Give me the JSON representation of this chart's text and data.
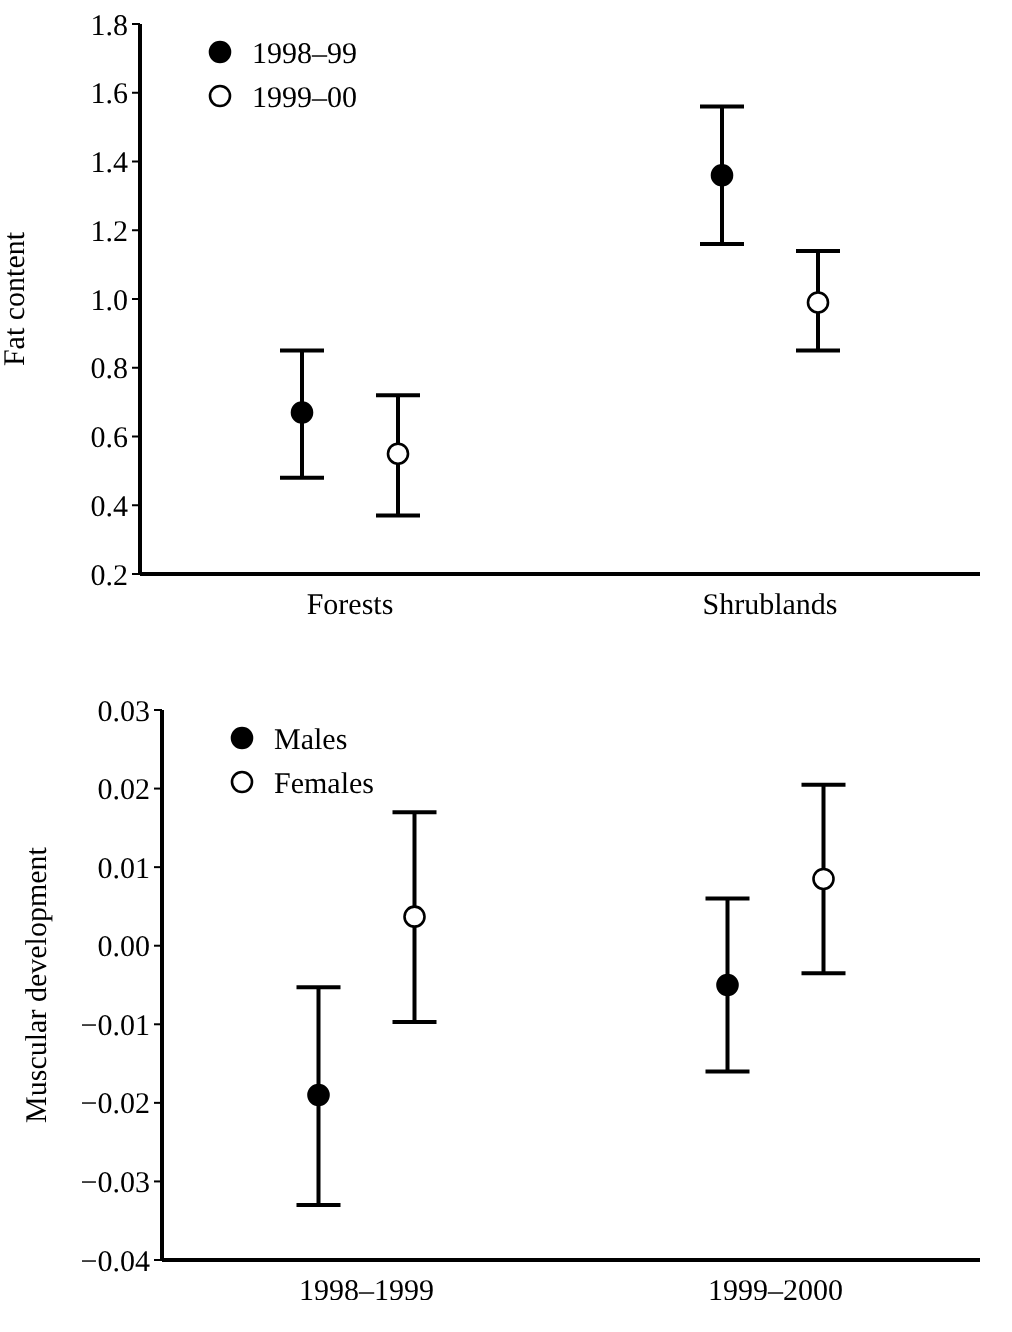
{
  "chart_data": [
    {
      "type": "scatter",
      "ylabel": "Fat content",
      "categories": [
        "Forests",
        "Shrublands"
      ],
      "ylim": [
        0.2,
        1.8
      ],
      "yticks": [
        {
          "value": 0.2,
          "label": "0.2"
        },
        {
          "value": 0.4,
          "label": "0.4"
        },
        {
          "value": 0.6,
          "label": "0.6"
        },
        {
          "value": 0.8,
          "label": "0.8"
        },
        {
          "value": 1.0,
          "label": "1.0"
        },
        {
          "value": 1.2,
          "label": "1.2"
        },
        {
          "value": 1.4,
          "label": "1.4"
        },
        {
          "value": 1.6,
          "label": "1.6"
        },
        {
          "value": 1.8,
          "label": "1.8"
        }
      ],
      "marker": "circle",
      "legend": "top left",
      "grid": false,
      "series": [
        {
          "name": "1998–99",
          "color": "#000000",
          "values": [
            0.67,
            1.36
          ],
          "errors": [
            [
              0.48,
              0.85
            ],
            [
              1.16,
              1.56
            ]
          ]
        },
        {
          "name": "1999–00",
          "color": "#ffffff",
          "values": [
            0.55,
            0.99
          ],
          "errors": [
            [
              0.37,
              0.72
            ],
            [
              0.85,
              1.14
            ]
          ]
        }
      ]
    },
    {
      "type": "scatter",
      "ylabel": "Muscular development",
      "categories": [
        "1998–1999",
        "1999–2000"
      ],
      "ylim": [
        -0.04,
        0.03
      ],
      "yticks": [
        {
          "value": -0.04,
          "label": "−0.04"
        },
        {
          "value": -0.03,
          "label": "−0.03"
        },
        {
          "value": -0.02,
          "label": "−0.02"
        },
        {
          "value": -0.01,
          "label": "−0.01"
        },
        {
          "value": 0,
          "label": "0.00"
        },
        {
          "value": 0.01,
          "label": "0.01"
        },
        {
          "value": 0.02,
          "label": "0.02"
        },
        {
          "value": 0.03,
          "label": "0.03"
        }
      ],
      "marker": "circle",
      "legend": "top left",
      "grid": false,
      "series": [
        {
          "name": "Males",
          "color": "#000000",
          "values": [
            -0.019,
            -0.005
          ],
          "errors": [
            [
              -0.033,
              -0.0053
            ],
            [
              -0.016,
              0.006
            ]
          ]
        },
        {
          "name": "Females",
          "color": "#ffffff",
          "values": [
            0.0037,
            0.0085
          ],
          "errors": [
            [
              -0.0097,
              0.017
            ],
            [
              -0.0035,
              0.0205
            ]
          ]
        }
      ]
    }
  ]
}
